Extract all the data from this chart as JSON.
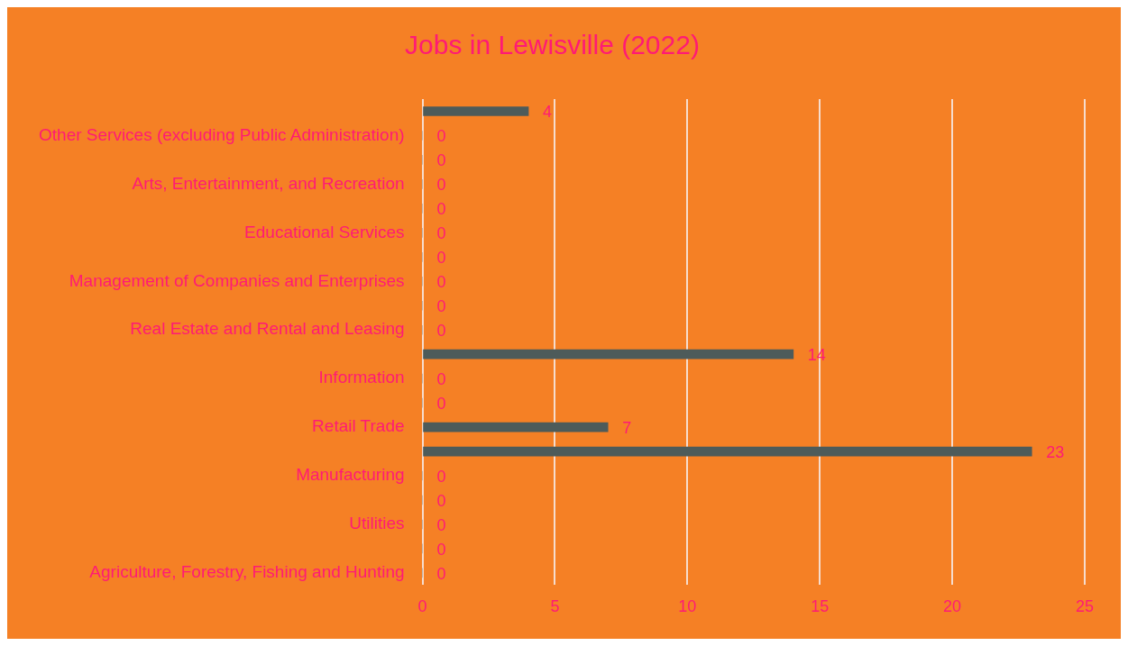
{
  "chart_data": {
    "type": "bar",
    "orientation": "horizontal",
    "title": "Jobs in Lewisville (2022)",
    "categories": [
      null,
      "Other Services (excluding Public Administration)",
      null,
      "Arts, Entertainment, and Recreation",
      null,
      "Educational Services",
      null,
      "Management of Companies and Enterprises",
      null,
      "Real Estate and Rental and Leasing",
      null,
      "Information",
      null,
      "Retail Trade",
      null,
      "Manufacturing",
      null,
      "Utilities",
      null,
      "Agriculture, Forestry, Fishing and Hunting"
    ],
    "values": [
      4,
      0,
      0,
      0,
      0,
      0,
      0,
      0,
      0,
      0,
      14,
      0,
      0,
      7,
      23,
      0,
      0,
      0,
      0,
      0
    ],
    "color": "#4d5b5a",
    "xlim": [
      0,
      25
    ],
    "xticks": [
      0,
      5,
      10,
      15,
      20,
      25
    ],
    "grid": "x",
    "legend": false,
    "data_labels": true
  }
}
